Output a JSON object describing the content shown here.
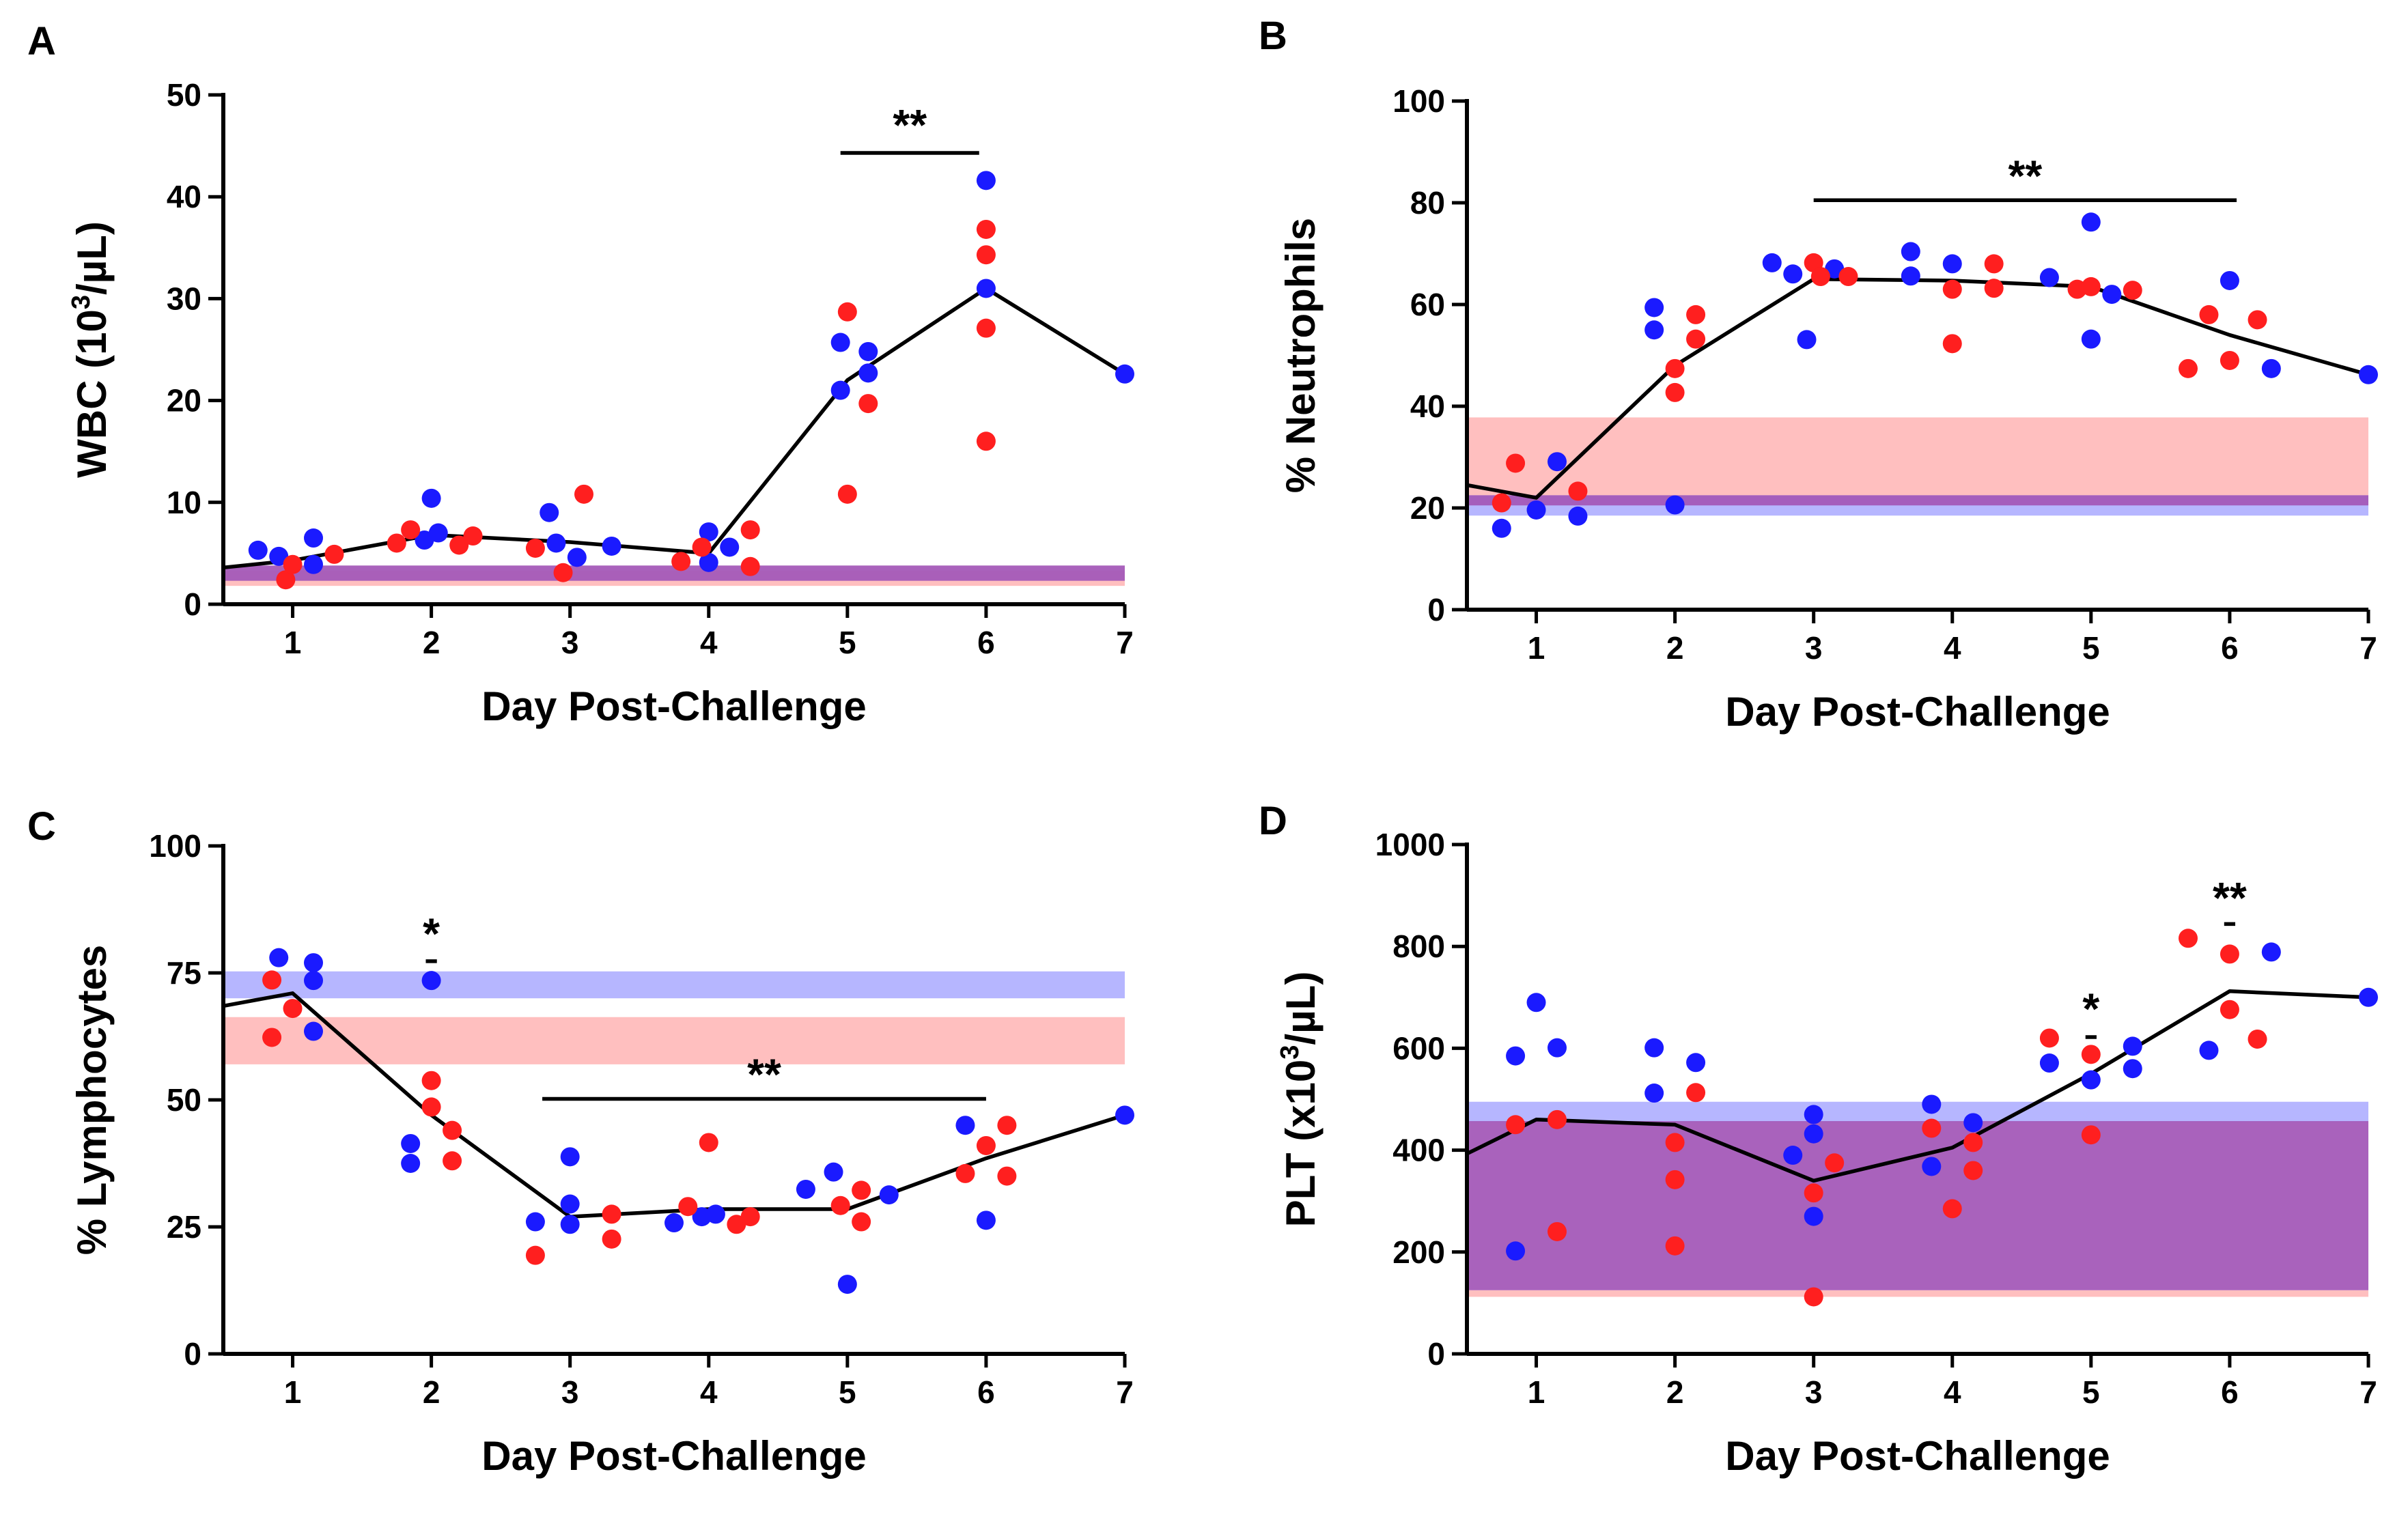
{
  "colors": {
    "blue": "#1a1aff",
    "red": "#ff1f1f",
    "blue_band": "#7a7aff",
    "red_band": "#ff8a8a",
    "purple_band": "#a45ab8"
  },
  "chart_data": [
    {
      "id": "A",
      "panel_label": "A",
      "type": "scatter",
      "xlabel": "Day Post-Challenge",
      "ylabel_main": "WBC (10",
      "ylabel_sup": "3",
      "ylabel_tail": "/µL)",
      "xlim": [
        0.5,
        7
      ],
      "ylim": [
        0,
        50
      ],
      "xticks": [
        1,
        2,
        3,
        4,
        5,
        6,
        7
      ],
      "xtick_labels": [
        "1",
        "2",
        "3",
        "4",
        "5",
        "6",
        "7"
      ],
      "yticks": [
        0,
        10,
        20,
        30,
        40,
        50
      ],
      "ytick_labels": [
        "0",
        "10",
        "20",
        "30",
        "40",
        "50"
      ],
      "bands": [
        {
          "color": "red",
          "y0": 1.8,
          "y1": 3.3
        },
        {
          "color": "purple",
          "y0": 2.3,
          "y1": 3.8
        }
      ],
      "mean_line": [
        [
          0.5,
          3.6
        ],
        [
          1,
          4.3
        ],
        [
          2,
          6.8
        ],
        [
          3,
          6.1
        ],
        [
          4,
          5.0
        ],
        [
          5,
          22.0
        ],
        [
          6,
          31.0
        ],
        [
          7,
          22.6
        ]
      ],
      "series": [
        {
          "name": "blue",
          "points": [
            [
              0.75,
              5.3
            ],
            [
              0.9,
              4.7
            ],
            [
              1.15,
              3.9
            ],
            [
              1.15,
              6.5
            ],
            [
              1.95,
              6.3
            ],
            [
              2.0,
              10.4
            ],
            [
              2.05,
              7.0
            ],
            [
              2.85,
              9.0
            ],
            [
              2.9,
              6.0
            ],
            [
              3.05,
              4.6
            ],
            [
              3.3,
              5.7
            ],
            [
              4.0,
              7.1
            ],
            [
              4.0,
              4.1
            ],
            [
              4.15,
              5.6
            ],
            [
              4.95,
              25.7
            ],
            [
              4.95,
              21.0
            ],
            [
              5.15,
              24.8
            ],
            [
              5.15,
              22.7
            ],
            [
              6.0,
              41.6
            ],
            [
              6.0,
              31.0
            ],
            [
              7.0,
              22.6
            ]
          ]
        },
        {
          "name": "red",
          "points": [
            [
              0.95,
              2.4
            ],
            [
              1.0,
              3.9
            ],
            [
              1.3,
              4.9
            ],
            [
              1.75,
              6.0
            ],
            [
              1.85,
              7.3
            ],
            [
              2.2,
              5.8
            ],
            [
              2.3,
              6.7
            ],
            [
              2.75,
              5.5
            ],
            [
              2.95,
              3.1
            ],
            [
              3.1,
              10.8
            ],
            [
              3.8,
              4.2
            ],
            [
              3.95,
              5.6
            ],
            [
              4.3,
              3.7
            ],
            [
              4.3,
              7.3
            ],
            [
              5.0,
              28.7
            ],
            [
              5.0,
              10.8
            ],
            [
              5.15,
              19.7
            ],
            [
              6.0,
              36.8
            ],
            [
              6.0,
              34.3
            ],
            [
              6.0,
              27.1
            ],
            [
              6.0,
              16.0
            ]
          ]
        }
      ],
      "annotations": [
        {
          "text": "**",
          "x0": 4.95,
          "x1": 5.95,
          "y": 44.3,
          "text_y": 47.2
        }
      ]
    },
    {
      "id": "B",
      "panel_label": "B",
      "type": "scatter",
      "xlabel": "Day Post-Challenge",
      "ylabel_main": "% Neutrophils",
      "ylabel_sup": "",
      "ylabel_tail": "",
      "xlim": [
        0.5,
        7
      ],
      "ylim": [
        0,
        100
      ],
      "xticks": [
        1,
        2,
        3,
        4,
        5,
        6,
        7
      ],
      "xtick_labels": [
        "1",
        "2",
        "3",
        "4",
        "5",
        "6",
        "7"
      ],
      "yticks": [
        0,
        20,
        40,
        60,
        80,
        100
      ],
      "ytick_labels": [
        "0",
        "20",
        "40",
        "60",
        "80",
        "100"
      ],
      "bands": [
        {
          "color": "blue",
          "y0": 18.5,
          "y1": 22.5
        },
        {
          "color": "red",
          "y0": 22.5,
          "y1": 37.8
        },
        {
          "color": "purple",
          "y0": 20.5,
          "y1": 22.5
        }
      ],
      "mean_line": [
        [
          0.5,
          24.5
        ],
        [
          1,
          22.0
        ],
        [
          2,
          48.0
        ],
        [
          3,
          65.0
        ],
        [
          4,
          64.7
        ],
        [
          5,
          63.5
        ],
        [
          6,
          54.0
        ],
        [
          7,
          46.2
        ]
      ],
      "series": [
        {
          "name": "blue",
          "points": [
            [
              0.75,
              16.0
            ],
            [
              1.0,
              19.6
            ],
            [
              1.15,
              29.1
            ],
            [
              1.3,
              18.4
            ],
            [
              1.85,
              59.4
            ],
            [
              1.85,
              55.0
            ],
            [
              2.0,
              20.6
            ],
            [
              2.7,
              68.2
            ],
            [
              2.85,
              66.0
            ],
            [
              2.95,
              53.1
            ],
            [
              3.15,
              67.0
            ],
            [
              3.7,
              70.4
            ],
            [
              3.7,
              65.6
            ],
            [
              4.0,
              68.0
            ],
            [
              4.7,
              65.3
            ],
            [
              5.0,
              76.2
            ],
            [
              5.0,
              53.2
            ],
            [
              5.15,
              62.0
            ],
            [
              6.0,
              64.7
            ],
            [
              6.3,
              47.4
            ],
            [
              7.0,
              46.2
            ]
          ]
        },
        {
          "name": "red",
          "points": [
            [
              0.75,
              21.0
            ],
            [
              0.85,
              28.8
            ],
            [
              1.3,
              23.3
            ],
            [
              2.0,
              47.4
            ],
            [
              2.0,
              42.7
            ],
            [
              2.15,
              58.0
            ],
            [
              2.15,
              53.2
            ],
            [
              3.0,
              68.2
            ],
            [
              3.05,
              65.5
            ],
            [
              3.25,
              65.5
            ],
            [
              4.0,
              63.0
            ],
            [
              4.0,
              52.3
            ],
            [
              4.3,
              68.0
            ],
            [
              4.3,
              63.2
            ],
            [
              4.9,
              63.0
            ],
            [
              5.0,
              63.5
            ],
            [
              5.3,
              62.8
            ],
            [
              5.7,
              47.4
            ],
            [
              5.85,
              58.0
            ],
            [
              6.0,
              49.0
            ],
            [
              6.2,
              57.0
            ]
          ]
        }
      ],
      "annotations": [
        {
          "text": "**",
          "x0": 3.0,
          "x1": 6.05,
          "y": 80.5,
          "text_y": 85.6
        }
      ]
    },
    {
      "id": "C",
      "panel_label": "C",
      "type": "scatter",
      "xlabel": "Day Post-Challenge",
      "ylabel_main": "% Lymphocytes",
      "ylabel_sup": "",
      "ylabel_tail": "",
      "xlim": [
        0.5,
        7
      ],
      "ylim": [
        0,
        100
      ],
      "xticks": [
        1,
        2,
        3,
        4,
        5,
        6,
        7
      ],
      "xtick_labels": [
        "1",
        "2",
        "3",
        "4",
        "5",
        "6",
        "7"
      ],
      "yticks": [
        0,
        25,
        50,
        75,
        100
      ],
      "ytick_labels": [
        "0",
        "25",
        "50",
        "75",
        "100"
      ],
      "bands": [
        {
          "color": "blue",
          "y0": 70.0,
          "y1": 75.3
        },
        {
          "color": "red",
          "y0": 57.0,
          "y1": 66.3
        }
      ],
      "mean_line": [
        [
          0.5,
          68.5
        ],
        [
          1,
          71.0
        ],
        [
          2,
          47.0
        ],
        [
          3,
          27.0
        ],
        [
          4,
          28.5
        ],
        [
          5,
          28.5
        ],
        [
          6,
          38.5
        ],
        [
          7,
          47.0
        ]
      ],
      "series": [
        {
          "name": "blue",
          "points": [
            [
              0.9,
              78.0
            ],
            [
              1.15,
              77.0
            ],
            [
              1.15,
              73.5
            ],
            [
              1.15,
              63.5
            ],
            [
              1.85,
              41.4
            ],
            [
              1.85,
              37.5
            ],
            [
              2.0,
              73.5
            ],
            [
              2.75,
              26.0
            ],
            [
              3.0,
              38.8
            ],
            [
              3.0,
              29.5
            ],
            [
              3.0,
              25.5
            ],
            [
              3.75,
              25.8
            ],
            [
              3.95,
              27.0
            ],
            [
              4.05,
              27.5
            ],
            [
              4.7,
              32.4
            ],
            [
              4.9,
              35.8
            ],
            [
              5.0,
              13.7
            ],
            [
              5.3,
              31.3
            ],
            [
              5.85,
              45.0
            ],
            [
              6.0,
              26.3
            ],
            [
              7.0,
              47.0
            ]
          ]
        },
        {
          "name": "red",
          "points": [
            [
              0.85,
              73.6
            ],
            [
              0.85,
              62.3
            ],
            [
              1.0,
              68.0
            ],
            [
              2.0,
              53.8
            ],
            [
              2.0,
              48.6
            ],
            [
              2.15,
              44.0
            ],
            [
              2.15,
              38.0
            ],
            [
              2.75,
              19.4
            ],
            [
              3.3,
              27.5
            ],
            [
              3.3,
              22.6
            ],
            [
              3.85,
              29.0
            ],
            [
              4.0,
              41.6
            ],
            [
              4.2,
              25.5
            ],
            [
              4.3,
              27.0
            ],
            [
              4.95,
              29.2
            ],
            [
              5.1,
              32.2
            ],
            [
              5.1,
              26.0
            ],
            [
              5.85,
              35.5
            ],
            [
              6.0,
              41.0
            ],
            [
              6.15,
              45.0
            ],
            [
              6.15,
              35.0
            ]
          ]
        }
      ],
      "annotations": [
        {
          "text": "*",
          "x0": 1.96,
          "x1": 2.04,
          "y": 77.3,
          "text_y": 83.0
        },
        {
          "text": "**",
          "x0": 2.8,
          "x1": 6.0,
          "y": 50.2,
          "text_y": 55.3
        }
      ]
    },
    {
      "id": "D",
      "panel_label": "D",
      "type": "scatter",
      "xlabel": "Day Post-Challenge",
      "ylabel_main": "PLT (x10",
      "ylabel_sup": "3",
      "ylabel_tail": "/µL)",
      "xlim": [
        0.5,
        7
      ],
      "ylim": [
        0,
        1000
      ],
      "xticks": [
        1,
        2,
        3,
        4,
        5,
        6,
        7
      ],
      "xtick_labels": [
        "1",
        "2",
        "3",
        "4",
        "5",
        "6",
        "7"
      ],
      "yticks": [
        0,
        200,
        400,
        600,
        800,
        1000
      ],
      "ytick_labels": [
        "0",
        "200",
        "400",
        "600",
        "800",
        "1000"
      ],
      "bands": [
        {
          "color": "blue",
          "y0": 455,
          "y1": 495
        },
        {
          "color": "red",
          "y0": 112,
          "y1": 125
        },
        {
          "color": "purple",
          "y0": 125,
          "y1": 457
        }
      ],
      "mean_line": [
        [
          0.5,
          393
        ],
        [
          1,
          460
        ],
        [
          2,
          450
        ],
        [
          3,
          340
        ],
        [
          4,
          405
        ],
        [
          5,
          550
        ],
        [
          6,
          712
        ],
        [
          7,
          700
        ]
      ],
      "series": [
        {
          "name": "blue",
          "points": [
            [
              0.85,
              585
            ],
            [
              0.85,
              202
            ],
            [
              1.0,
              690
            ],
            [
              1.15,
              601
            ],
            [
              1.85,
              601
            ],
            [
              1.85,
              512
            ],
            [
              2.15,
              572
            ],
            [
              2.85,
              390
            ],
            [
              3.0,
              470
            ],
            [
              3.0,
              432
            ],
            [
              3.0,
              270
            ],
            [
              3.85,
              490
            ],
            [
              3.85,
              368
            ],
            [
              4.15,
              454
            ],
            [
              4.7,
              571
            ],
            [
              5.0,
              538
            ],
            [
              5.3,
              604
            ],
            [
              5.3,
              560
            ],
            [
              5.85,
              596
            ],
            [
              6.3,
              789
            ],
            [
              7.0,
              700
            ]
          ]
        },
        {
          "name": "red",
          "points": [
            [
              0.85,
              450
            ],
            [
              1.15,
              460
            ],
            [
              1.15,
              240
            ],
            [
              2.0,
              415
            ],
            [
              2.0,
              342
            ],
            [
              2.0,
              212
            ],
            [
              2.15,
              513
            ],
            [
              3.0,
              316
            ],
            [
              3.0,
              112
            ],
            [
              3.15,
              375
            ],
            [
              3.85,
              443
            ],
            [
              4.0,
              285
            ],
            [
              4.15,
              415
            ],
            [
              4.15,
              360
            ],
            [
              4.7,
              620
            ],
            [
              5.0,
              588
            ],
            [
              5.0,
              430
            ],
            [
              5.7,
              816
            ],
            [
              6.0,
              785
            ],
            [
              6.0,
              676
            ],
            [
              6.2,
              618
            ]
          ]
        }
      ],
      "annotations": [
        {
          "text": "*",
          "x0": 4.96,
          "x1": 5.04,
          "y": 622,
          "text_y": 680
        },
        {
          "text": "**",
          "x0": 5.96,
          "x1": 6.04,
          "y": 844,
          "text_y": 898
        }
      ]
    }
  ]
}
